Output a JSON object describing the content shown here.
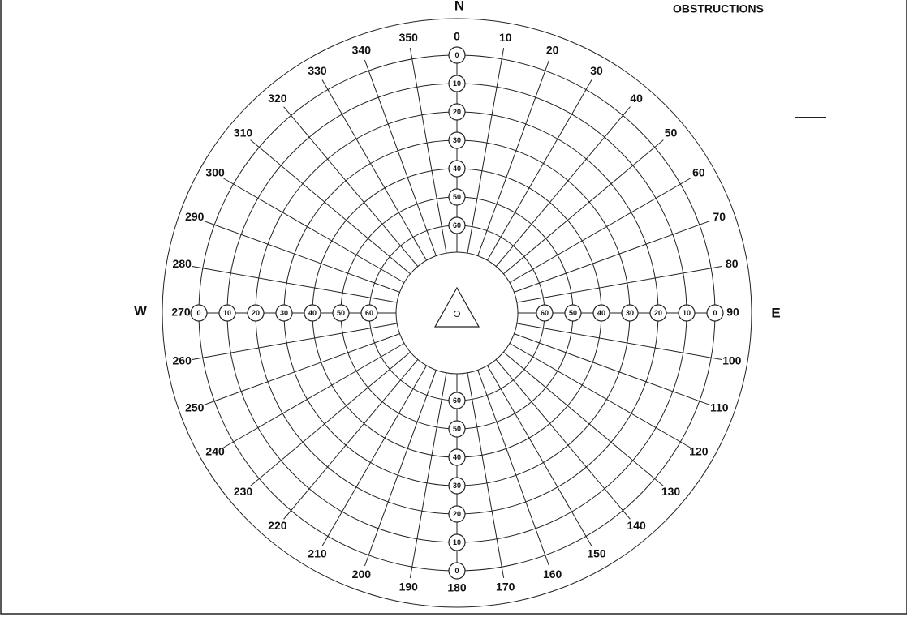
{
  "title": "OBSTRUCTIONS",
  "compass": {
    "north": "N",
    "east": "E",
    "west": "W"
  },
  "azimuths": [
    0,
    10,
    20,
    30,
    40,
    50,
    60,
    70,
    80,
    90,
    100,
    110,
    120,
    130,
    140,
    150,
    160,
    170,
    180,
    190,
    200,
    210,
    220,
    230,
    240,
    250,
    260,
    270,
    280,
    290,
    300,
    310,
    320,
    330,
    340,
    350
  ],
  "elevations": [
    0,
    10,
    20,
    30,
    40,
    50,
    60
  ]
}
